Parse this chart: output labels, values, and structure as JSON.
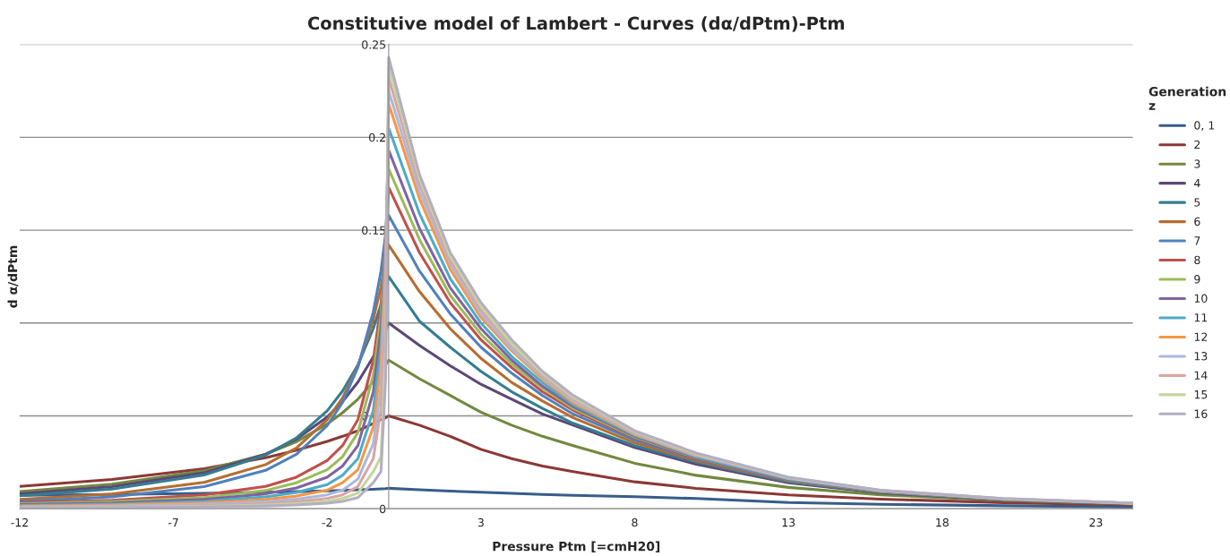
{
  "chart_data": {
    "type": "line",
    "title": "Constitutive model of Lambert - Curves (dα/dPtm)-Ptm",
    "xlabel": "Pressure Ptm [=cmH20]",
    "ylabel": "d α/dPtm",
    "legend_title": "Generation\nz",
    "x": [
      -12,
      -9,
      -6,
      -4,
      -3,
      -2,
      -1.5,
      -1,
      -0.5,
      -0.25,
      -0.1,
      -0.05,
      0,
      1,
      2,
      3,
      4,
      5,
      6,
      8,
      10,
      13,
      16,
      20,
      24.2
    ],
    "xlim": [
      -12,
      24.2
    ],
    "xticks": [
      -12,
      -7,
      -2,
      3,
      8,
      13,
      18,
      23
    ],
    "ylim": [
      0,
      0.25
    ],
    "yticks": [
      0,
      0.05,
      0.1,
      0.15,
      0.2,
      0.25
    ],
    "grid": "y",
    "legend": "right",
    "marker": "none",
    "line_style": "solid",
    "series": [
      {
        "name": "0, 1",
        "color": "#385d8a",
        "values": [
          0.0072,
          0.0077,
          0.0083,
          0.0089,
          0.0092,
          0.0096,
          0.0099,
          0.0102,
          0.0105,
          0.0107,
          0.0108,
          0.0109,
          0.011,
          0.0102,
          0.0095,
          0.0089,
          0.0083,
          0.0077,
          0.0072,
          0.0065,
          0.0055,
          0.0034,
          0.0024,
          0.0016,
          0.001
        ]
      },
      {
        "name": "2",
        "color": "#8c3836",
        "values": [
          0.012,
          0.0158,
          0.0216,
          0.0275,
          0.0315,
          0.0363,
          0.039,
          0.042,
          0.046,
          0.048,
          0.049,
          0.0495,
          0.05,
          0.045,
          0.039,
          0.032,
          0.027,
          0.023,
          0.02,
          0.0145,
          0.011,
          0.0075,
          0.0052,
          0.0033,
          0.002
        ]
      },
      {
        "name": "3",
        "color": "#71893f",
        "values": [
          0.0092,
          0.0132,
          0.0205,
          0.0294,
          0.0361,
          0.0456,
          0.0517,
          0.059,
          0.0684,
          0.0738,
          0.0775,
          0.0787,
          0.08,
          0.07,
          0.061,
          0.052,
          0.045,
          0.039,
          0.034,
          0.0245,
          0.018,
          0.0115,
          0.0075,
          0.0045,
          0.0025
        ]
      },
      {
        "name": "4",
        "color": "#5c4776",
        "values": [
          0.008,
          0.0119,
          0.0194,
          0.0293,
          0.0375,
          0.0494,
          0.0577,
          0.0682,
          0.0818,
          0.0902,
          0.096,
          0.098,
          0.1,
          0.088,
          0.077,
          0.067,
          0.059,
          0.051,
          0.045,
          0.033,
          0.024,
          0.014,
          0.0086,
          0.0047,
          0.0027
        ]
      },
      {
        "name": "5",
        "color": "#357d91",
        "values": [
          0.007,
          0.0106,
          0.0182,
          0.0289,
          0.0381,
          0.0527,
          0.0634,
          0.0775,
          0.097,
          0.11,
          0.119,
          0.122,
          0.125,
          0.101,
          0.087,
          0.074,
          0.063,
          0.054,
          0.046,
          0.034,
          0.025,
          0.0145,
          0.0088,
          0.0048,
          0.0027
        ]
      },
      {
        "name": "6",
        "color": "#b66d31",
        "values": [
          0.005,
          0.0079,
          0.0142,
          0.0238,
          0.0327,
          0.0479,
          0.0597,
          0.0767,
          0.102,
          0.1195,
          0.134,
          0.138,
          0.142,
          0.117,
          0.097,
          0.081,
          0.068,
          0.058,
          0.049,
          0.0355,
          0.0258,
          0.0149,
          0.009,
          null,
          null
        ]
      },
      {
        "name": "7",
        "color": "#4f81bd",
        "values": [
          0.004,
          0.0064,
          0.0119,
          0.0207,
          0.0293,
          0.0447,
          0.0573,
          0.0762,
          0.106,
          0.128,
          0.148,
          0.153,
          0.158,
          0.128,
          0.105,
          0.087,
          0.073,
          0.061,
          0.051,
          0.037,
          0.0265,
          0.0152,
          0.0091,
          0.005,
          0.0028
        ]
      },
      {
        "name": "8",
        "color": "#c0504d",
        "values": [
          0.0033,
          0.0045,
          0.0075,
          0.012,
          0.017,
          0.026,
          0.034,
          0.048,
          0.08,
          0.11,
          0.145,
          0.158,
          0.173,
          0.138,
          0.111,
          0.091,
          0.076,
          0.063,
          0.053,
          0.038,
          0.027,
          0.0154,
          0.0092,
          0.0051,
          0.0029
        ]
      },
      {
        "name": "9",
        "color": "#9bbb59",
        "values": [
          0.0028,
          0.0038,
          0.006,
          0.0098,
          0.014,
          0.021,
          0.028,
          0.041,
          0.072,
          0.104,
          0.144,
          0.162,
          0.183,
          0.145,
          0.115,
          0.094,
          0.078,
          0.065,
          0.054,
          0.0385,
          0.0274,
          0.0156,
          0.0093,
          0.0051,
          0.0029
        ]
      },
      {
        "name": "10",
        "color": "#8064a2",
        "values": [
          0.0023,
          0.0031,
          0.005,
          0.008,
          0.0112,
          0.017,
          0.023,
          0.034,
          0.063,
          0.097,
          0.142,
          0.165,
          0.193,
          0.151,
          0.119,
          0.097,
          0.08,
          0.066,
          0.055,
          0.039,
          0.0277,
          0.0158,
          0.0094,
          0.0052,
          0.003
        ]
      },
      {
        "name": "11",
        "color": "#4bacc6",
        "values": [
          0.0018,
          0.0025,
          0.004,
          0.0064,
          0.0088,
          0.013,
          0.018,
          0.027,
          0.053,
          0.088,
          0.14,
          0.168,
          0.205,
          0.159,
          0.124,
          0.1,
          0.082,
          0.068,
          0.056,
          0.0395,
          0.028,
          0.016,
          0.0095,
          null,
          null
        ]
      },
      {
        "name": "12",
        "color": "#f79646",
        "values": [
          0.0014,
          0.002,
          0.0032,
          0.005,
          0.0068,
          0.01,
          0.014,
          0.021,
          0.044,
          0.078,
          0.135,
          0.17,
          0.218,
          0.167,
          0.129,
          0.103,
          0.085,
          0.07,
          0.057,
          0.04,
          0.0284,
          null,
          null,
          null,
          null
        ]
      },
      {
        "name": "13",
        "color": "#aab9dc",
        "values": [
          0.001,
          0.0015,
          0.0025,
          0.0038,
          0.0052,
          0.0075,
          0.01,
          0.016,
          0.035,
          0.066,
          0.127,
          0.168,
          0.225,
          0.171,
          0.132,
          0.105,
          0.086,
          0.071,
          0.058,
          0.0405,
          0.0287,
          0.0164,
          0.0097,
          0.0053,
          0.003
        ]
      },
      {
        "name": "14",
        "color": "#d9a5a4",
        "values": [
          0.0008,
          0.0011,
          0.0018,
          0.0028,
          0.0038,
          0.0055,
          0.0075,
          0.012,
          0.027,
          0.054,
          0.117,
          0.163,
          0.232,
          0.175,
          0.134,
          0.107,
          0.088,
          0.072,
          0.059,
          0.041,
          0.029,
          0.0166,
          0.0098,
          0.0054,
          0.003
        ]
      },
      {
        "name": "15",
        "color": "#c3d69b",
        "values": [
          0.0006,
          0.0008,
          0.0013,
          0.002,
          0.0028,
          0.004,
          0.0055,
          0.0085,
          0.02,
          0.028,
          0.085,
          0.14,
          0.238,
          0.178,
          0.136,
          0.109,
          0.089,
          0.073,
          0.06,
          0.0415,
          0.0295,
          0.0168,
          0.0099,
          0.0054,
          0.003
        ]
      },
      {
        "name": "16",
        "color": "#b4aec4",
        "values": [
          0.0005,
          0.0006,
          0.001,
          0.0015,
          0.002,
          0.003,
          0.004,
          0.006,
          0.014,
          0.02,
          0.07,
          0.13,
          0.243,
          0.18,
          0.138,
          0.111,
          0.091,
          0.074,
          0.061,
          0.042,
          0.03,
          0.017,
          0.01,
          0.0055,
          0.003
        ]
      }
    ]
  }
}
